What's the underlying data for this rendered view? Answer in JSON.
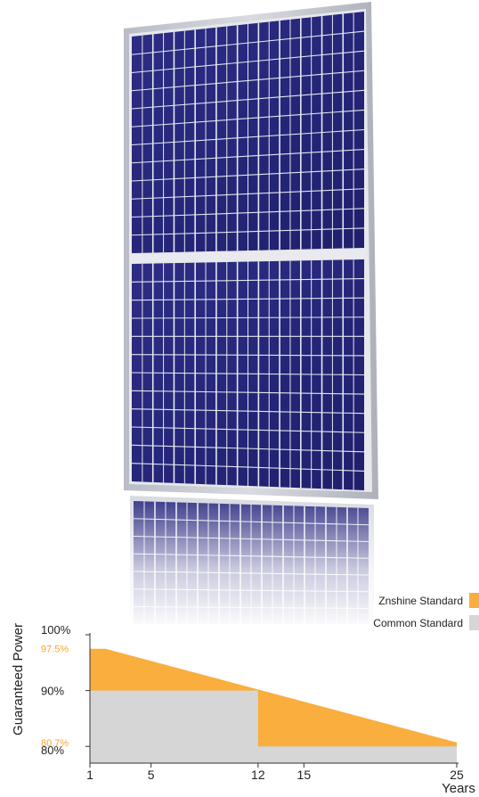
{
  "chart_data": {
    "type": "area",
    "ylabel": "Guaranteed Power",
    "xlabel": "Years",
    "x_ticks": [
      1,
      5,
      12,
      15,
      25
    ],
    "y_ticks": [
      {
        "label": "100%",
        "value": 100,
        "highlight": false
      },
      {
        "label": "97.5%",
        "value": 97.5,
        "highlight": true
      },
      {
        "label": "90%",
        "value": 90,
        "highlight": false
      },
      {
        "label": "80.7%",
        "value": 80.7,
        "highlight": true
      },
      {
        "label": "80%",
        "value": 80,
        "highlight": false
      }
    ],
    "xlim": [
      1,
      25
    ],
    "ylim": [
      77,
      100
    ],
    "series": [
      {
        "name": "Znshine Standard",
        "color": "#f9ae3d",
        "x": [
          1,
          2,
          25
        ],
        "y": [
          97.5,
          97.5,
          80.7
        ]
      },
      {
        "name": "Common Standard",
        "color": "#d6d6d6",
        "x": [
          1,
          12,
          12,
          25
        ],
        "y": [
          90,
          90,
          80,
          80
        ]
      }
    ],
    "legend_placement": "top-right",
    "grid": false
  },
  "highlight_color": "#f5a431",
  "text_color": "#222222",
  "panel": {
    "frame_color": "#c6c9d1",
    "cell_color": "#2a2a7e",
    "grid_line_color": "#e4e6ee"
  }
}
